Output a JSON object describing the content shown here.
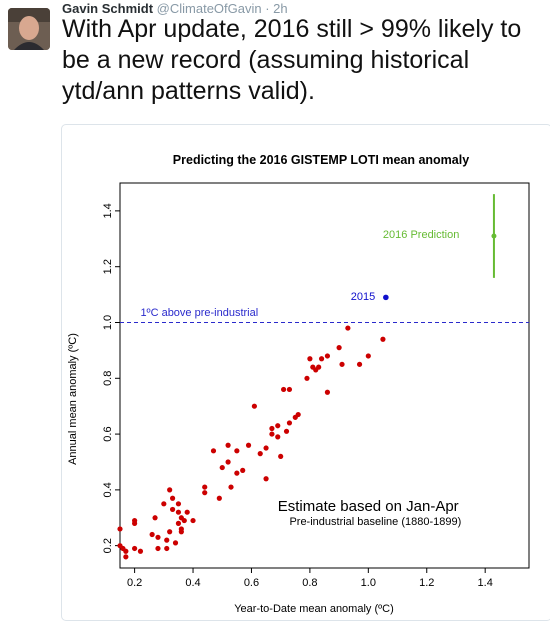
{
  "tweet": {
    "author_name": "Gavin Schmidt",
    "handle": "@ClimateOfGavin",
    "separator": " · ",
    "time": "2h",
    "text": "With Apr update, 2016 still > 99% likely to be a new record (assuming historical ytd/ann patterns valid)."
  },
  "colors": {
    "points": "#cc0000",
    "highlight": "#1010cc",
    "prediction": "#66bb33",
    "threshold": "#2a2acc",
    "handle": "#8899a6"
  },
  "chart_data": {
    "type": "scatter",
    "title": "Predicting the 2016 GISTEMP LOTI mean anomaly",
    "xlabel": "Year-to-Date mean anomaly (ºC)",
    "ylabel": "Annual mean anomaly (ºC)",
    "xlim": [
      0.15,
      1.55
    ],
    "ylim": [
      0.12,
      1.5
    ],
    "xticks": [
      0.2,
      0.4,
      0.6,
      0.8,
      1.0,
      1.2,
      1.4
    ],
    "xtick_labels": [
      "0.2",
      "0.4",
      "0.6",
      "0.8",
      "1.0",
      "1.2",
      "1.4"
    ],
    "yticks": [
      0.2,
      0.4,
      0.6,
      0.8,
      1.0,
      1.2,
      1.4
    ],
    "ytick_labels": [
      "0.2",
      "0.4",
      "0.6",
      "0.8",
      "1.0",
      "1.2",
      "1.4"
    ],
    "grid": false,
    "historical_points": [
      [
        0.15,
        0.26
      ],
      [
        0.15,
        0.2
      ],
      [
        0.16,
        0.19
      ],
      [
        0.17,
        0.18
      ],
      [
        0.17,
        0.16
      ],
      [
        0.2,
        0.29
      ],
      [
        0.2,
        0.28
      ],
      [
        0.2,
        0.19
      ],
      [
        0.22,
        0.18
      ],
      [
        0.26,
        0.24
      ],
      [
        0.27,
        0.3
      ],
      [
        0.28,
        0.23
      ],
      [
        0.28,
        0.19
      ],
      [
        0.3,
        0.35
      ],
      [
        0.31,
        0.19
      ],
      [
        0.31,
        0.22
      ],
      [
        0.32,
        0.4
      ],
      [
        0.32,
        0.25
      ],
      [
        0.33,
        0.37
      ],
      [
        0.33,
        0.33
      ],
      [
        0.34,
        0.21
      ],
      [
        0.35,
        0.35
      ],
      [
        0.35,
        0.32
      ],
      [
        0.35,
        0.28
      ],
      [
        0.36,
        0.3
      ],
      [
        0.36,
        0.26
      ],
      [
        0.36,
        0.25
      ],
      [
        0.37,
        0.29
      ],
      [
        0.38,
        0.32
      ],
      [
        0.4,
        0.29
      ],
      [
        0.44,
        0.41
      ],
      [
        0.44,
        0.39
      ],
      [
        0.47,
        0.54
      ],
      [
        0.49,
        0.37
      ],
      [
        0.5,
        0.48
      ],
      [
        0.52,
        0.56
      ],
      [
        0.52,
        0.5
      ],
      [
        0.53,
        0.41
      ],
      [
        0.55,
        0.46
      ],
      [
        0.55,
        0.54
      ],
      [
        0.57,
        0.47
      ],
      [
        0.59,
        0.56
      ],
      [
        0.61,
        0.7
      ],
      [
        0.63,
        0.53
      ],
      [
        0.65,
        0.55
      ],
      [
        0.65,
        0.44
      ],
      [
        0.67,
        0.6
      ],
      [
        0.67,
        0.62
      ],
      [
        0.69,
        0.63
      ],
      [
        0.69,
        0.59
      ],
      [
        0.7,
        0.52
      ],
      [
        0.71,
        0.76
      ],
      [
        0.72,
        0.61
      ],
      [
        0.73,
        0.76
      ],
      [
        0.73,
        0.64
      ],
      [
        0.75,
        0.66
      ],
      [
        0.76,
        0.67
      ],
      [
        0.79,
        0.8
      ],
      [
        0.8,
        0.87
      ],
      [
        0.81,
        0.84
      ],
      [
        0.82,
        0.83
      ],
      [
        0.83,
        0.84
      ],
      [
        0.84,
        0.87
      ],
      [
        0.86,
        0.88
      ],
      [
        0.86,
        0.75
      ],
      [
        0.9,
        0.91
      ],
      [
        0.91,
        0.85
      ],
      [
        0.93,
        0.98
      ],
      [
        0.97,
        0.85
      ],
      [
        1.0,
        0.88
      ],
      [
        1.05,
        0.94
      ]
    ],
    "highlight_point": {
      "label": "2015",
      "x": 1.06,
      "y": 1.09
    },
    "prediction": {
      "label": "2016 Prediction",
      "x": 1.43,
      "y": 1.31,
      "low": 1.16,
      "high": 1.46
    },
    "threshold": {
      "label": "1ºC above pre-industrial",
      "y": 1.0
    },
    "annotations": {
      "main": "Estimate based on Jan-Apr",
      "sub": "Pre-industrial baseline (1880-1899)"
    }
  }
}
